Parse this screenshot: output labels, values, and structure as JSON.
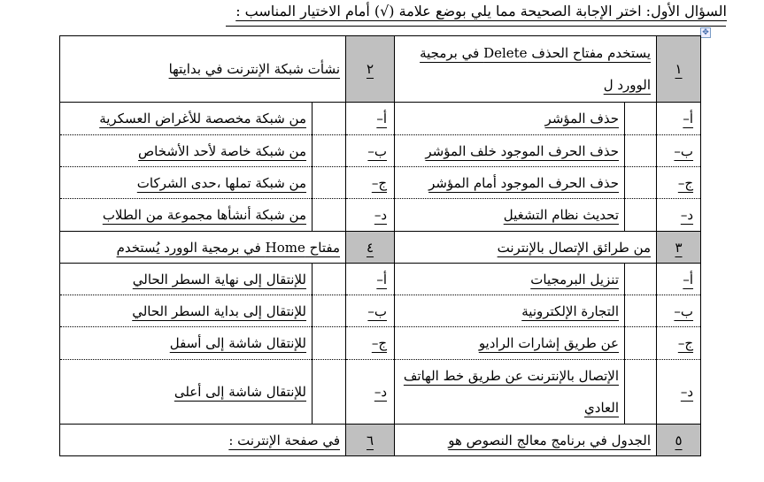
{
  "title": "السؤال الأول: اختر الإجابة الصحيحة مما يلي بوضع علامة (√) أمام الاختيار المناسب :",
  "move_icon": "move-handle-icon",
  "rows": [
    {
      "type": "q",
      "right": {
        "num": "١",
        "text": "يستخدم مفتاح الحذف Delete في برمجية الوورد ل"
      },
      "left": {
        "num": "٢",
        "text": "نشأت شبكة الإنترنت في بدايتها"
      }
    },
    {
      "type": "o",
      "right": {
        "letter": "أ–",
        "text": "حذف المؤشر"
      },
      "left": {
        "letter": "أ–",
        "text": "من شبكة مخصصة للأغراض العسكرية"
      }
    },
    {
      "type": "o",
      "right": {
        "letter": "ب–",
        "text": "حذف الحرف الموجود خلف المؤشر"
      },
      "left": {
        "letter": "ب–",
        "text": "من شبكة خاصة لأحد الأشخاص"
      }
    },
    {
      "type": "o",
      "right": {
        "letter": "ج–",
        "text": "حذف الحرف الموجود أمام المؤشر"
      },
      "left": {
        "letter": "ج–",
        "text": "من شبكة تملها ،حدى الشركات"
      }
    },
    {
      "type": "o",
      "right": {
        "letter": "د–",
        "text": "تحديث نظام التشغيل"
      },
      "left": {
        "letter": "د–",
        "text": "من شبكة أنشأها مجموعة من الطلاب"
      }
    },
    {
      "type": "q",
      "right": {
        "num": "٣",
        "text": "من طرائق الإتصال بالإنترنت"
      },
      "left": {
        "num": "٤",
        "text": "مفتاح Home في برمجية الوورد يُستخدم"
      }
    },
    {
      "type": "o",
      "right": {
        "letter": "أ–",
        "text": "تنزيل البرمجيات"
      },
      "left": {
        "letter": "أ–",
        "text": "للإنتقال إلى نهاية السطر الحالي"
      }
    },
    {
      "type": "o",
      "right": {
        "letter": "ب–",
        "text": "التجارة الإلكترونية"
      },
      "left": {
        "letter": "ب–",
        "text": "للإنتقال إلى بداية السطر الحالي"
      }
    },
    {
      "type": "o",
      "right": {
        "letter": "ج–",
        "text": "عن طريق إشارات الراديو"
      },
      "left": {
        "letter": "ج–",
        "text": "للإنتقال شاشة إلى أسفل"
      }
    },
    {
      "type": "o",
      "right": {
        "letter": "د–",
        "text": "الإتصال بالإنترنت عن طريق خط الهاتف العادي"
      },
      "left": {
        "letter": "د–",
        "text": "للإنتقال شاشة إلى أعلى"
      }
    },
    {
      "type": "q",
      "right": {
        "num": "٥",
        "text": "الجدول في برنامج معالج النصوص هو"
      },
      "left": {
        "num": "٦",
        "text": "في صفحة الإنترنت :"
      }
    }
  ]
}
